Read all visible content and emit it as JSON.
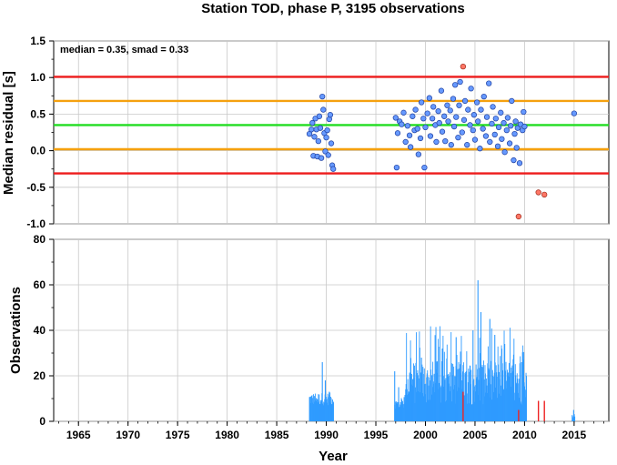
{
  "title": "Station TOD, phase P, 3195 observations",
  "chart_data": [
    {
      "type": "scatter",
      "annotation": "median = 0.35, smad = 0.33",
      "ylabel": "Median residual [s]",
      "xlim": [
        1962.5,
        2018.5
      ],
      "ylim": [
        -1.0,
        1.5
      ],
      "yticks": [
        "1.5",
        "1.0",
        "0.5",
        "0.0",
        "-0.5",
        "-1.0"
      ],
      "grid": true,
      "reference_lines": [
        {
          "value": 1.01,
          "color": "#ee1c1c"
        },
        {
          "value": 0.68,
          "color": "#f5a10f"
        },
        {
          "value": 0.35,
          "color": "#22dd22"
        },
        {
          "value": 0.02,
          "color": "#f5a10f"
        },
        {
          "value": -0.31,
          "color": "#ee1c1c"
        }
      ],
      "colors": {
        "inlier": "#6699ff",
        "outlier": "#ff7766"
      },
      "outliers": [
        [
          2003.8,
          1.15
        ],
        [
          2009.4,
          -0.9
        ],
        [
          2011.4,
          -0.57
        ],
        [
          2012.0,
          -0.6
        ]
      ],
      "inlier_points": [
        [
          1988.3,
          0.23
        ],
        [
          1988.5,
          0.29
        ],
        [
          1988.6,
          0.38
        ],
        [
          1988.7,
          -0.07
        ],
        [
          1988.8,
          0.19
        ],
        [
          1988.9,
          0.44
        ],
        [
          1989.0,
          0.29
        ],
        [
          1989.1,
          -0.08
        ],
        [
          1989.2,
          0.13
        ],
        [
          1989.3,
          0.47
        ],
        [
          1989.4,
          0.31
        ],
        [
          1989.5,
          -0.1
        ],
        [
          1989.6,
          0.74
        ],
        [
          1989.7,
          0.56
        ],
        [
          1989.8,
          0.24
        ],
        [
          1989.9,
          -0.01
        ],
        [
          1990.0,
          0.18
        ],
        [
          1990.1,
          0.28
        ],
        [
          1990.2,
          -0.06
        ],
        [
          1990.3,
          0.43
        ],
        [
          1990.4,
          0.49
        ],
        [
          1990.5,
          0.1
        ],
        [
          1990.6,
          -0.2
        ],
        [
          1990.7,
          -0.25
        ],
        [
          1997.0,
          0.45
        ],
        [
          1997.1,
          -0.23
        ],
        [
          1997.2,
          0.24
        ],
        [
          1997.4,
          0.4
        ],
        [
          1997.6,
          0.36
        ],
        [
          1997.8,
          0.52
        ],
        [
          1998.0,
          0.12
        ],
        [
          1998.2,
          0.34
        ],
        [
          1998.4,
          0.21
        ],
        [
          1998.5,
          0.05
        ],
        [
          1998.7,
          0.47
        ],
        [
          1998.9,
          0.28
        ],
        [
          1999.0,
          0.56
        ],
        [
          1999.2,
          0.3
        ],
        [
          1999.3,
          -0.05
        ],
        [
          1999.5,
          0.17
        ],
        [
          1999.6,
          0.66
        ],
        [
          1999.8,
          0.44
        ],
        [
          1999.9,
          -0.23
        ],
        [
          2000.0,
          0.32
        ],
        [
          2000.2,
          0.51
        ],
        [
          2000.4,
          0.72
        ],
        [
          2000.5,
          0.2
        ],
        [
          2000.7,
          0.44
        ],
        [
          2000.8,
          0.6
        ],
        [
          2001.0,
          0.35
        ],
        [
          2001.1,
          0.12
        ],
        [
          2001.3,
          0.54
        ],
        [
          2001.4,
          0.38
        ],
        [
          2001.6,
          0.82
        ],
        [
          2001.7,
          0.26
        ],
        [
          2001.9,
          0.47
        ],
        [
          2002.0,
          0.13
        ],
        [
          2002.2,
          0.62
        ],
        [
          2002.3,
          0.4
        ],
        [
          2002.5,
          0.55
        ],
        [
          2002.6,
          0.08
        ],
        [
          2002.8,
          0.71
        ],
        [
          2002.9,
          0.33
        ],
        [
          2003.0,
          0.9
        ],
        [
          2003.1,
          0.46
        ],
        [
          2003.3,
          0.18
        ],
        [
          2003.4,
          0.62
        ],
        [
          2003.5,
          0.94
        ],
        [
          2003.7,
          0.25
        ],
        [
          2003.9,
          0.42
        ],
        [
          2004.0,
          0.68
        ],
        [
          2004.2,
          0.08
        ],
        [
          2004.3,
          0.56
        ],
        [
          2004.5,
          0.35
        ],
        [
          2004.6,
          0.85
        ],
        [
          2004.8,
          0.28
        ],
        [
          2004.9,
          0.49
        ],
        [
          2005.0,
          0.15
        ],
        [
          2005.2,
          0.66
        ],
        [
          2005.3,
          0.4
        ],
        [
          2005.5,
          0.03
        ],
        [
          2005.6,
          0.56
        ],
        [
          2005.8,
          0.3
        ],
        [
          2005.9,
          0.74
        ],
        [
          2006.1,
          0.2
        ],
        [
          2006.2,
          0.46
        ],
        [
          2006.4,
          0.92
        ],
        [
          2006.5,
          0.12
        ],
        [
          2006.7,
          0.37
        ],
        [
          2006.8,
          0.6
        ],
        [
          2007.0,
          0.22
        ],
        [
          2007.1,
          0.44
        ],
        [
          2007.3,
          0.06
        ],
        [
          2007.4,
          0.32
        ],
        [
          2007.6,
          0.52
        ],
        [
          2007.7,
          0.16
        ],
        [
          2007.9,
          0.38
        ],
        [
          2008.0,
          -0.02
        ],
        [
          2008.2,
          0.28
        ],
        [
          2008.3,
          0.45
        ],
        [
          2008.5,
          0.1
        ],
        [
          2008.6,
          0.34
        ],
        [
          2008.7,
          0.68
        ],
        [
          2008.9,
          -0.13
        ],
        [
          2009.0,
          0.23
        ],
        [
          2009.1,
          0.4
        ],
        [
          2009.2,
          0.04
        ],
        [
          2009.3,
          0.31
        ],
        [
          2009.5,
          -0.17
        ],
        [
          2009.6,
          0.36
        ],
        [
          2009.8,
          0.28
        ],
        [
          2009.9,
          0.53
        ],
        [
          2010.0,
          0.33
        ],
        [
          2015.0,
          0.51
        ]
      ]
    },
    {
      "type": "bar",
      "ylabel": "Observations",
      "xlabel": "Year",
      "xlim": [
        1962.5,
        2018.5
      ],
      "ylim": [
        0,
        80
      ],
      "yticks": [
        "80",
        "60",
        "40",
        "20",
        "0"
      ],
      "xticks": [
        "1965",
        "1970",
        "1975",
        "1980",
        "1985",
        "1990",
        "1995",
        "2000",
        "2005",
        "2010",
        "2015"
      ],
      "grid": true,
      "colors": {
        "inlier": "#2f9bff",
        "outlier": "#ee2222"
      },
      "segments": [
        {
          "start": 1988.3,
          "end": 1990.75,
          "base": 9,
          "amplitude": 4,
          "peaks": [
            [
              1989.6,
              26
            ],
            [
              1989.9,
              18
            ],
            [
              1990.3,
              13
            ]
          ]
        },
        {
          "start": 1996.9,
          "end": 1998.0,
          "base": 7,
          "amplitude": 3,
          "peaks": [
            [
              1996.9,
              22
            ],
            [
              1997.3,
              15
            ]
          ]
        },
        {
          "start": 1998.0,
          "end": 2010.2,
          "base": 14,
          "amplitude": 14,
          "peaks": [
            [
              2005.3,
              62
            ],
            [
              2005.6,
              48
            ],
            [
              2006.5,
              45
            ],
            [
              2004.8,
              40
            ],
            [
              2007.0,
              38
            ],
            [
              2003.1,
              37
            ],
            [
              2008.0,
              34
            ],
            [
              2001.7,
              32
            ],
            [
              1999.6,
              28
            ],
            [
              2009.7,
              26
            ]
          ]
        },
        {
          "start": 2014.8,
          "end": 2015.1,
          "base": 2,
          "amplitude": 1,
          "peaks": [
            [
              2014.95,
              5
            ]
          ]
        }
      ],
      "outlier_bars": [
        [
          2003.8,
          13
        ],
        [
          2009.4,
          5
        ],
        [
          2011.4,
          9
        ],
        [
          2012.0,
          9
        ]
      ]
    }
  ]
}
